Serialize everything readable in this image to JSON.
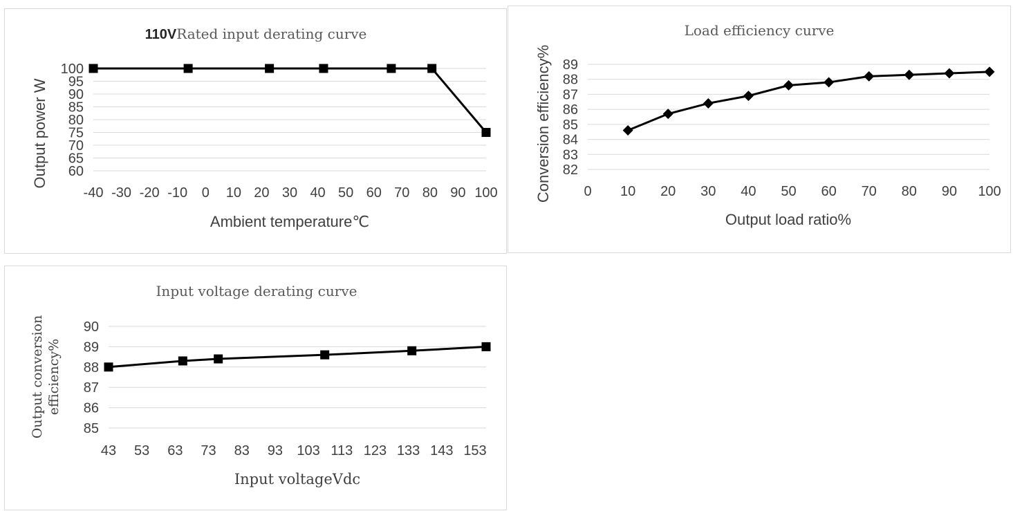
{
  "chart_data": [
    {
      "type": "line",
      "title_prefix": "110V",
      "title": "Rated input derating curve",
      "xlabel": "Ambient temperature℃",
      "ylabel": "Output power W",
      "x_ticks": [
        "-40",
        "-30",
        "-20",
        "-10",
        "0",
        "10",
        "20",
        "30",
        "40",
        "50",
        "60",
        "70",
        "80",
        "90",
        "100"
      ],
      "y_ticks": [
        "60",
        "65",
        "70",
        "75",
        "80",
        "85",
        "90",
        "95",
        "100"
      ],
      "ylim": [
        60,
        100
      ],
      "xlim": [
        -40,
        105
      ],
      "marker": "square",
      "series": [
        {
          "x": [
            -40,
            -5,
            25,
            45,
            70,
            85,
            105
          ],
          "values": [
            100,
            100,
            100,
            100,
            100,
            100,
            75
          ]
        }
      ]
    },
    {
      "type": "line",
      "title": "Load efficiency curve",
      "xlabel": "Output load ratio%",
      "ylabel": "Conversion efficiency%",
      "x_ticks": [
        "0",
        "10",
        "20",
        "30",
        "40",
        "50",
        "60",
        "70",
        "80",
        "90",
        "100"
      ],
      "y_ticks": [
        "82",
        "83",
        "84",
        "85",
        "86",
        "87",
        "88",
        "89"
      ],
      "ylim": [
        82,
        89
      ],
      "xlim": [
        0,
        100
      ],
      "marker": "diamond",
      "series": [
        {
          "x": [
            10,
            20,
            30,
            40,
            50,
            60,
            70,
            80,
            90,
            100
          ],
          "values": [
            84.6,
            85.7,
            86.4,
            86.9,
            87.6,
            87.8,
            88.2,
            88.3,
            88.4,
            88.5
          ]
        }
      ]
    },
    {
      "type": "line",
      "title": "Input voltage derating curve",
      "xlabel": "Input voltageVdc",
      "ylabel_line1": "Output conversion",
      "ylabel_line2": "efficiency%",
      "x_ticks": [
        "43",
        "53",
        "63",
        "73",
        "83",
        "93",
        "103",
        "113",
        "123",
        "133",
        "143",
        "153"
      ],
      "y_ticks": [
        "85",
        "86",
        "87",
        "88",
        "89",
        "90"
      ],
      "ylim": [
        85,
        90
      ],
      "xlim": [
        43,
        160
      ],
      "marker": "square",
      "series": [
        {
          "x": [
            43,
            66,
            77,
            110,
            137,
            160
          ],
          "values": [
            88.0,
            88.3,
            88.4,
            88.6,
            88.8,
            89.0
          ]
        }
      ]
    }
  ]
}
